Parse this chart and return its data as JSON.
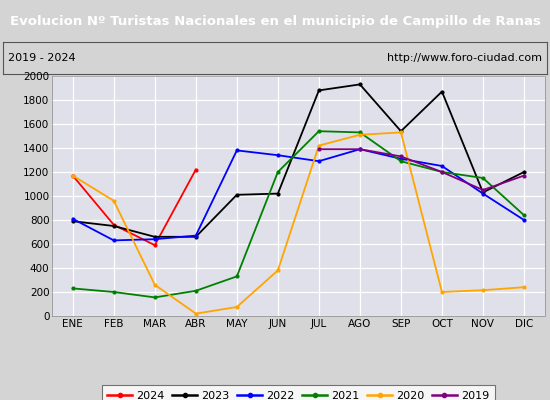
{
  "title": "Evolucion Nº Turistas Nacionales en el municipio de Campillo de Ranas",
  "subtitle_left": "2019 - 2024",
  "subtitle_right": "http://www.foro-ciudad.com",
  "months": [
    "ENE",
    "FEB",
    "MAR",
    "ABR",
    "MAY",
    "JUN",
    "JUL",
    "AGO",
    "SEP",
    "OCT",
    "NOV",
    "DIC"
  ],
  "title_bg": "#4472c4",
  "title_color": "white",
  "bg_color": "#d4d4d4",
  "plot_bg": "#e0e0ea",
  "grid_color": "white",
  "border_color": "#888888",
  "ylim": [
    0,
    2000
  ],
  "yticks": [
    0,
    200,
    400,
    600,
    800,
    1000,
    1200,
    1400,
    1600,
    1800,
    2000
  ],
  "year_order": [
    "2024",
    "2023",
    "2022",
    "2021",
    "2020",
    "2019"
  ],
  "series": {
    "2024": {
      "color": "red",
      "data": [
        1170,
        760,
        590,
        1220,
        null,
        null,
        null,
        null,
        null,
        null,
        null,
        null
      ]
    },
    "2023": {
      "color": "black",
      "data": [
        790,
        750,
        660,
        660,
        1010,
        1020,
        1880,
        1930,
        1540,
        1870,
        1030,
        1200
      ]
    },
    "2022": {
      "color": "blue",
      "data": [
        810,
        630,
        640,
        670,
        1380,
        1340,
        1290,
        1390,
        1310,
        1250,
        1020,
        800
      ]
    },
    "2021": {
      "color": "green",
      "data": [
        230,
        200,
        155,
        210,
        330,
        1200,
        1540,
        1530,
        1290,
        1200,
        1150,
        840
      ]
    },
    "2020": {
      "color": "orange",
      "data": [
        1170,
        960,
        260,
        20,
        75,
        380,
        1420,
        1510,
        1530,
        200,
        215,
        240
      ]
    },
    "2019": {
      "color": "purple",
      "data": [
        null,
        null,
        null,
        null,
        null,
        null,
        1390,
        1390,
        1330,
        1200,
        1050,
        1170
      ]
    }
  }
}
